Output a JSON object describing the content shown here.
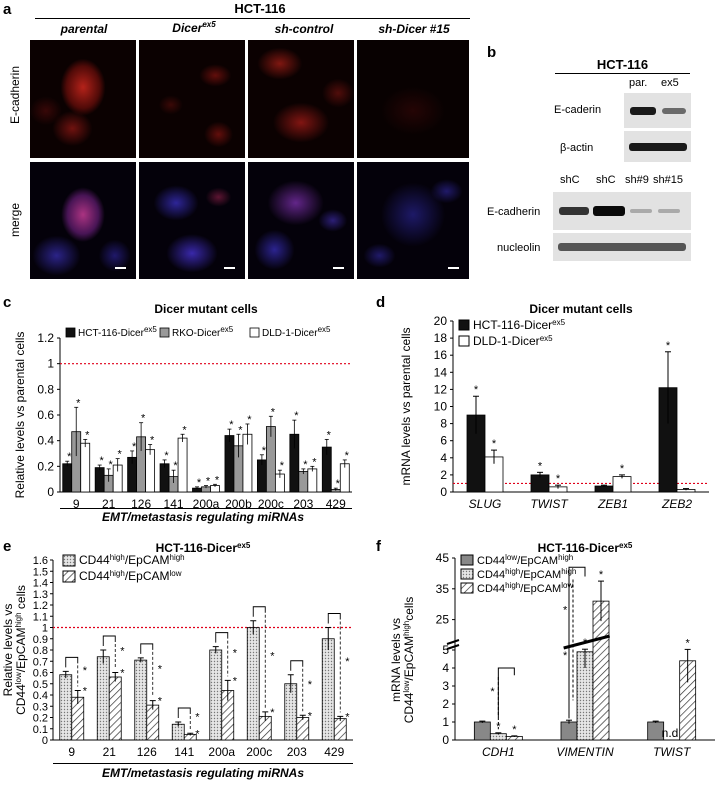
{
  "panel_a": {
    "label": "a",
    "cell_line": "HCT-116",
    "columns": [
      {
        "text": "parental",
        "sup": ""
      },
      {
        "text": "Dicer",
        "sup": "ex5"
      },
      {
        "text": "sh-control",
        "sup": ""
      },
      {
        "text": "sh-Dicer #15",
        "sup": ""
      }
    ],
    "rows": [
      "E-cadherin",
      "merge"
    ]
  },
  "panel_b": {
    "label": "b",
    "cell_line": "HCT-116",
    "top_lanes": [
      "par.",
      "ex5"
    ],
    "top_bands": [
      "E-caderin",
      "β-actin"
    ],
    "bottom_lanes": [
      "shC",
      "shC",
      "sh#9",
      "sh#15"
    ],
    "bottom_bands": [
      "E-cadherin",
      "nucleolin"
    ]
  },
  "panel_c": {
    "label": "c",
    "group_label": "EMT/metastasis regulating miRNAs",
    "chart_data": {
      "type": "bar",
      "title": "Dicer mutant cells",
      "ylabel": "Relative levels vs parental cells",
      "ylim": [
        0,
        1.2
      ],
      "yticks": [
        "0",
        "0.2",
        "0.4",
        "0.6",
        "0.8",
        "1",
        "1.2"
      ],
      "reference_line": 1,
      "categories": [
        "9",
        "21",
        "126",
        "141",
        "200a",
        "200b",
        "200c",
        "203",
        "429"
      ],
      "series": [
        {
          "name": "HCT-116-Dicer",
          "sup": "ex5",
          "color": "#111111",
          "values": [
            0.22,
            0.19,
            0.27,
            0.22,
            0.03,
            0.44,
            0.25,
            0.45,
            0.35
          ],
          "errors": [
            0.02,
            0.02,
            0.05,
            0.03,
            0.01,
            0.05,
            0.04,
            0.11,
            0.06
          ]
        },
        {
          "name": "RKO-Dicer",
          "sup": "ex5",
          "color": "#999999",
          "values": [
            0.47,
            0.13,
            0.43,
            0.12,
            0.04,
            0.36,
            0.51,
            0.16,
            0.02
          ],
          "errors": [
            0.19,
            0.05,
            0.11,
            0.05,
            0.01,
            0.09,
            0.08,
            0.02,
            0.01
          ]
        },
        {
          "name": "DLD-1-Dicer",
          "sup": "ex5",
          "color": "#ffffff",
          "values": [
            0.38,
            0.21,
            0.33,
            0.42,
            0.05,
            0.45,
            0.14,
            0.18,
            0.22
          ],
          "errors": [
            0.03,
            0.05,
            0.04,
            0.03,
            0.01,
            0.08,
            0.03,
            0.02,
            0.03
          ]
        }
      ]
    }
  },
  "panel_d": {
    "label": "d",
    "chart_data": {
      "type": "bar",
      "title": "Dicer mutant cells",
      "ylabel": "mRNA levels vs parental cells",
      "ylim": [
        0,
        20
      ],
      "yticks": [
        "0",
        "2",
        "4",
        "6",
        "8",
        "10",
        "12",
        "14",
        "16",
        "18",
        "20"
      ],
      "reference_line": 1,
      "categories": [
        "SLUG",
        "TWIST",
        "ZEB1",
        "ZEB2"
      ],
      "series": [
        {
          "name": "HCT-116-Dicer",
          "sup": "ex5",
          "color": "#111111",
          "values": [
            9.0,
            2.0,
            0.7,
            12.2
          ],
          "errors": [
            2.2,
            0.3,
            0.1,
            4.2
          ]
        },
        {
          "name": "DLD-1-Dicer",
          "sup": "ex5",
          "color": "#ffffff",
          "values": [
            4.1,
            0.6,
            1.8,
            0.3
          ],
          "errors": [
            0.8,
            0.2,
            0.2,
            0.1
          ]
        }
      ]
    }
  },
  "panel_e": {
    "label": "e",
    "group_label": "EMT/metastasis regulating miRNAs",
    "ylabel_line1": "Relative levels vs",
    "ylabel_line2_pre": "CD44",
    "ylabel_line2_sup1": "low",
    "ylabel_line2_mid": "/EpCAM",
    "ylabel_line2_sup2": "high",
    "ylabel_line2_post": " cells",
    "chart_data": {
      "type": "bar",
      "title": "HCT-116-Dicer",
      "title_sup": "ex5",
      "ylim": [
        0,
        1.6
      ],
      "yticks": [
        "0",
        "0.1",
        "0.2",
        "0.3",
        "0.4",
        "0.5",
        "0.6",
        "0.7",
        "0.8",
        "0.9",
        "1",
        "1.1",
        "1.2",
        "1.3",
        "1.4",
        "1.5",
        "1.6"
      ],
      "reference_line": 1,
      "categories": [
        "9",
        "21",
        "126",
        "141",
        "200a",
        "200c",
        "203",
        "429"
      ],
      "series": [
        {
          "name": "CD44",
          "sup1": "high",
          "mid": "/EpCAM",
          "sup2": "high",
          "pattern": "dots",
          "values": [
            0.58,
            0.74,
            0.71,
            0.14,
            0.8,
            1.0,
            0.5,
            0.9
          ],
          "errors": [
            0.03,
            0.06,
            0.02,
            0.02,
            0.03,
            0.06,
            0.08,
            0.1
          ]
        },
        {
          "name": "CD44",
          "sup1": "high",
          "mid": "/EpCAM",
          "sup2": "low",
          "pattern": "hatch",
          "values": [
            0.38,
            0.56,
            0.31,
            0.05,
            0.44,
            0.21,
            0.2,
            0.19
          ],
          "errors": [
            0.06,
            0.04,
            0.04,
            0.01,
            0.09,
            0.04,
            0.02,
            0.02
          ]
        }
      ]
    }
  },
  "panel_f": {
    "label": "f",
    "ylabel_line1": "mRNA levels vs",
    "ylabel_line2_pre": "CD44",
    "ylabel_line2_sup1": "low",
    "ylabel_line2_mid": "/EpCAM",
    "ylabel_line2_sup2": "high",
    "ylabel_line2_post": "cells",
    "nd_label": "n.d.",
    "chart_data": {
      "type": "bar",
      "title": "HCT-116-Dicer",
      "title_sup": "ex5",
      "axis_break": true,
      "yticks_low": [
        "0",
        "1",
        "2",
        "3",
        "4",
        "5"
      ],
      "yticks_high": [
        "25",
        "35",
        "45"
      ],
      "categories": [
        "CDH1",
        "VIMENTIN",
        "TWIST"
      ],
      "series": [
        {
          "name": "CD44",
          "sup1": "low",
          "mid": "/EpCAM",
          "sup2": "high",
          "pattern": "gray",
          "values": [
            1.0,
            1.0,
            1.0
          ],
          "errors": [
            0.05,
            0.1,
            0.05
          ]
        },
        {
          "name": "CD44",
          "sup1": "high",
          "mid": "/EpCAM",
          "sup2": "high",
          "pattern": "dots",
          "values": [
            0.35,
            4.9,
            null
          ],
          "errors": [
            0.05,
            0.9,
            0
          ]
        },
        {
          "name": "CD44",
          "sup1": "high",
          "mid": "/EpCAM",
          "sup2": "low",
          "pattern": "hatch",
          "values": [
            0.2,
            31,
            4.4
          ],
          "errors": [
            0.03,
            6.5,
            1.2
          ]
        }
      ]
    }
  }
}
